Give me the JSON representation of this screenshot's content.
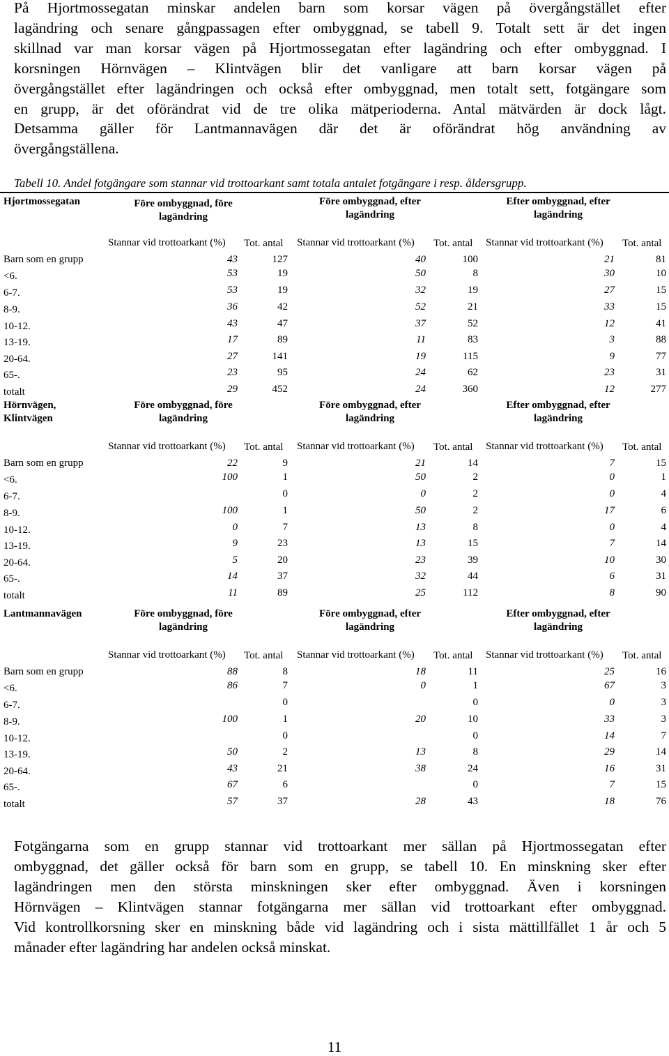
{
  "intro_lines": [
    "På Hjortmossegatan minskar andelen barn som korsar vägen på övergångstället efter",
    "lagändring och senare gångpassagen efter ombyggnad, se tabell 9. Totalt sett är det ingen",
    "skillnad var man korsar vägen på Hjortmossegatan efter lagändring och efter ombyggnad. I",
    "korsningen Hörnvägen – Klintvägen blir det vanligare att barn korsar vägen på",
    "övergångstället efter lagändringen och också efter ombyggnad, men totalt sett, fotgängare som",
    "en grupp, är det oförändrat vid de tre olika mätperioderna. Antal mätvärden är dock lågt.",
    "Detsamma gäller för Lantmannavägen där det är oförändrat hög användning av",
    "övergångställena."
  ],
  "caption": "Tabell 10. Andel fotgängare  som stannar vid trottoarkant samt totala antalet fotgängare i resp. åldersgrupp.",
  "groups": [
    {
      "line1": "Före ombyggnad, före",
      "line2": "lagändring"
    },
    {
      "line1": "Före ombyggnad, efter",
      "line2": "lagändring"
    },
    {
      "line1": "Efter ombyggnad, efter",
      "line2": "lagändring"
    }
  ],
  "sub_pct": "Stannar vid trottoarkant (%)",
  "sub_tot": "Tot. antal",
  "row_labels": [
    "Barn som en grupp",
    "<6.",
    "6-7.",
    "8-9.",
    "10-12.",
    "13-19.",
    "20-64.",
    "65-.",
    "totalt"
  ],
  "sections": [
    {
      "title_lines": [
        "Hjortmossegatan"
      ],
      "rows": [
        [
          "43",
          "127",
          "40",
          "100",
          "21",
          "81"
        ],
        [
          "53",
          "19",
          "50",
          "8",
          "30",
          "10"
        ],
        [
          "53",
          "19",
          "32",
          "19",
          "27",
          "15"
        ],
        [
          "36",
          "42",
          "52",
          "21",
          "33",
          "15"
        ],
        [
          "43",
          "47",
          "37",
          "52",
          "12",
          "41"
        ],
        [
          "17",
          "89",
          "11",
          "83",
          "3",
          "88"
        ],
        [
          "27",
          "141",
          "19",
          "115",
          "9",
          "77"
        ],
        [
          "23",
          "95",
          "24",
          "62",
          "23",
          "31"
        ],
        [
          "29",
          "452",
          "24",
          "360",
          "12",
          "277"
        ]
      ]
    },
    {
      "title_lines": [
        "Hörnvägen,",
        "Klintvägen"
      ],
      "rows": [
        [
          "22",
          "9",
          "21",
          "14",
          "7",
          "15"
        ],
        [
          "100",
          "1",
          "50",
          "2",
          "0",
          "1"
        ],
        [
          "",
          "0",
          "0",
          "2",
          "0",
          "4"
        ],
        [
          "100",
          "1",
          "50",
          "2",
          "17",
          "6"
        ],
        [
          "0",
          "7",
          "13",
          "8",
          "0",
          "4"
        ],
        [
          "9",
          "23",
          "13",
          "15",
          "7",
          "14"
        ],
        [
          "5",
          "20",
          "23",
          "39",
          "10",
          "30"
        ],
        [
          "14",
          "37",
          "32",
          "44",
          "6",
          "31"
        ],
        [
          "11",
          "89",
          "25",
          "112",
          "8",
          "90"
        ]
      ]
    },
    {
      "title_lines": [
        "Lantmannavägen"
      ],
      "rows": [
        [
          "88",
          "8",
          "18",
          "11",
          "25",
          "16"
        ],
        [
          "86",
          "7",
          "0",
          "1",
          "67",
          "3"
        ],
        [
          "",
          "0",
          "",
          "0",
          "0",
          "3"
        ],
        [
          "100",
          "1",
          "20",
          "10",
          "33",
          "3"
        ],
        [
          "",
          "0",
          "",
          "0",
          "14",
          "7"
        ],
        [
          "50",
          "2",
          "13",
          "8",
          "29",
          "14"
        ],
        [
          "43",
          "21",
          "38",
          "24",
          "16",
          "31"
        ],
        [
          "67",
          "6",
          "",
          "0",
          "7",
          "15"
        ],
        [
          "57",
          "37",
          "28",
          "43",
          "18",
          "76"
        ]
      ]
    }
  ],
  "outro_lines": [
    "Fotgängarna som en grupp stannar vid trottoarkant mer sällan på Hjortmossegatan efter",
    "ombyggnad, det gäller också för barn som en grupp, se tabell 10. En minskning sker efter",
    "lagändringen men den största minskningen sker efter ombyggnad. Även i korsningen",
    "Hörnvägen – Klintvägen stannar fotgängarna mer sällan vid trottoarkant efter ombyggnad.",
    "Vid kontrollkorsning sker en minskning både vid lagändring och i sista mättillfället 1 år och 5",
    "månader efter lagändring har andelen också minskat."
  ],
  "page_number": "11"
}
